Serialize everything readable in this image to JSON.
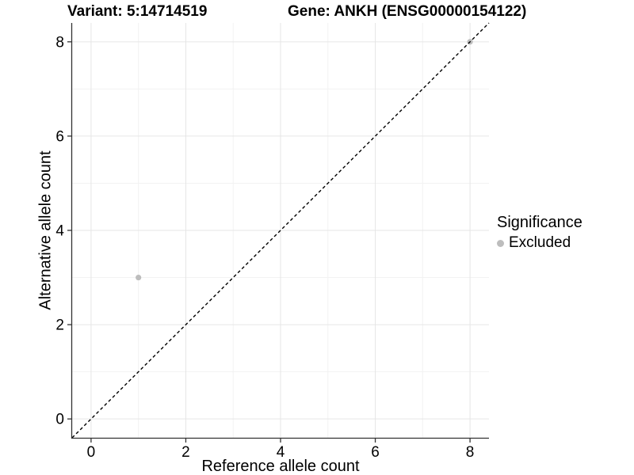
{
  "chart_data": {
    "type": "scatter",
    "titles": {
      "left": "Variant: 5:14714519",
      "right": "Gene: ANKH (ENSG00000154122)"
    },
    "xlabel": "Reference allele count",
    "ylabel": "Alternative allele count",
    "xlim": [
      -0.4,
      8.4
    ],
    "ylim": [
      -0.4,
      8.4
    ],
    "xticks": [
      0,
      2,
      4,
      6,
      8
    ],
    "yticks": [
      0,
      2,
      4,
      6,
      8
    ],
    "xminor": [
      1,
      3,
      5,
      7
    ],
    "yminor": [
      1,
      3,
      5,
      7
    ],
    "grid": true,
    "reference_line": {
      "kind": "identity",
      "style": "dashed",
      "color": "#000000"
    },
    "series": [
      {
        "name": "Excluded",
        "color": "#bdbdbd",
        "points": [
          {
            "x": 1,
            "y": 3
          },
          {
            "x": 8,
            "y": 8
          }
        ]
      }
    ],
    "legend": {
      "title": "Significance",
      "position": "right",
      "entries": [
        {
          "label": "Excluded",
          "color": "#bdbdbd"
        }
      ]
    },
    "colors": {
      "background": "#ffffff",
      "grid_major": "#e6e6e6",
      "grid_minor": "#f2f2f2",
      "axis": "#333333",
      "text": "#000000",
      "point": "#bdbdbd"
    }
  }
}
